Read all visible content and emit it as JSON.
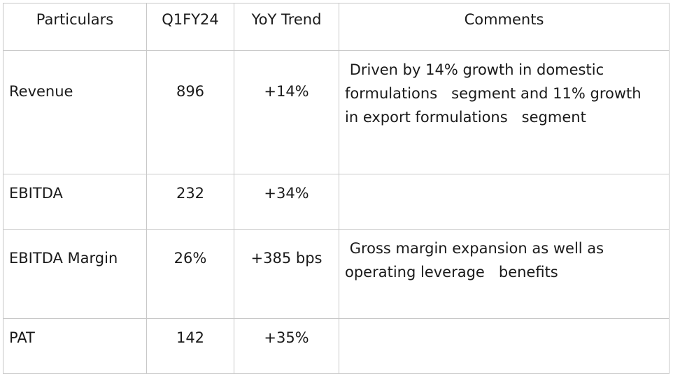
{
  "table": {
    "headers": [
      "Particulars",
      "Q1FY24",
      "YoY Trend",
      "Comments"
    ],
    "rows": [
      {
        "particular": "Revenue",
        "value": "896",
        "trend": "+14%",
        "comment": " Driven by 14% growth in domestic\nformulations   segment and 11% growth\nin export formulations   segment"
      },
      {
        "particular": "EBITDA",
        "value": "232",
        "trend": "+34%",
        "comment": ""
      },
      {
        "particular": "EBITDA Margin",
        "value": "26%",
        "trend": "+385 bps",
        "comment": " Gross margin expansion as well as\noperating leverage   benefits"
      },
      {
        "particular": "PAT",
        "value": "142",
        "trend": "+35%",
        "comment": ""
      }
    ]
  }
}
